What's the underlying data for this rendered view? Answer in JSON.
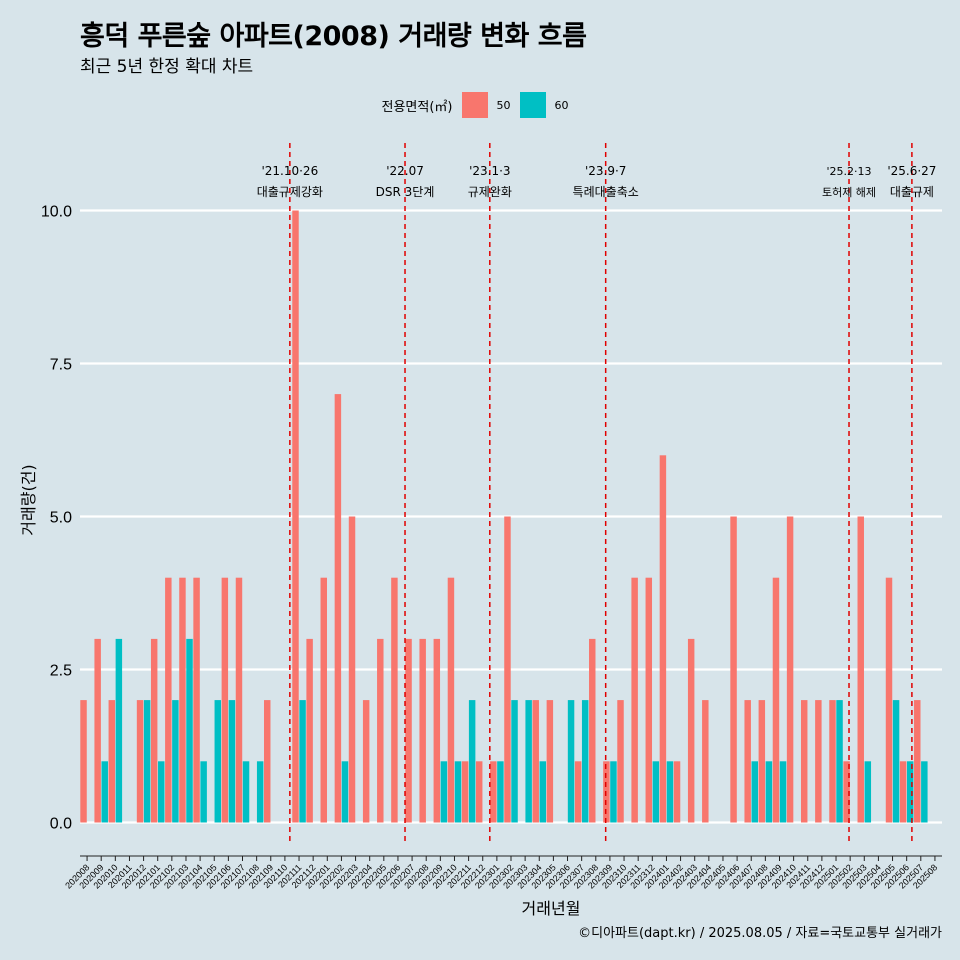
{
  "chart_data": {
    "type": "bar",
    "title": "흥덕 푸른숲 아파트(2008) 거래량 변화 흐름",
    "subtitle": "최근 5년 한정 확대 차트",
    "xlabel": "거래년월",
    "ylabel": "거래량(건)",
    "ylim": [
      -0.45,
      10.6
    ],
    "yticks": [
      "0.0",
      "2.5",
      "5.0",
      "7.5",
      "10.0"
    ],
    "ytick_values": [
      0,
      2.5,
      5,
      7.5,
      10
    ],
    "legend": {
      "title": "전용면적(㎡)",
      "entries": [
        {
          "label": "50",
          "color": "#F8766D"
        },
        {
          "label": "60",
          "color": "#00BFC4"
        }
      ]
    },
    "months": [
      "202008",
      "202009",
      "202010",
      "202011",
      "202012",
      "202101",
      "202102",
      "202103",
      "202104",
      "202105",
      "202106",
      "202107",
      "202108",
      "202109",
      "202110",
      "202111",
      "202112",
      "202201",
      "202202",
      "202203",
      "202204",
      "202205",
      "202206",
      "202207",
      "202208",
      "202209",
      "202210",
      "202211",
      "202212",
      "202301",
      "202302",
      "202303",
      "202304",
      "202305",
      "202306",
      "202307",
      "202308",
      "202309",
      "202310",
      "202311",
      "202312",
      "202401",
      "202402",
      "202403",
      "202404",
      "202405",
      "202406",
      "202407",
      "202408",
      "202409",
      "202410",
      "202411",
      "202412",
      "202501",
      "202502",
      "202503",
      "202504",
      "202505",
      "202506",
      "202507",
      "202508"
    ],
    "series": [
      {
        "name": "50",
        "values": [
          2,
          3,
          2,
          0,
          2,
          3,
          4,
          4,
          4,
          0,
          4,
          4,
          0,
          2,
          0,
          10,
          3,
          4,
          7,
          5,
          2,
          3,
          4,
          3,
          3,
          3,
          4,
          1,
          1,
          1,
          5,
          0,
          2,
          2,
          0,
          1,
          3,
          1,
          2,
          4,
          4,
          6,
          1,
          3,
          2,
          0,
          5,
          2,
          2,
          4,
          5,
          2,
          2,
          2,
          1,
          5,
          0,
          4,
          1,
          2,
          0
        ]
      },
      {
        "name": "60",
        "values": [
          0,
          1,
          3,
          0,
          2,
          1,
          2,
          3,
          1,
          2,
          2,
          1,
          1,
          0,
          0,
          2,
          0,
          0,
          1,
          0,
          0,
          0,
          0,
          0,
          0,
          1,
          1,
          2,
          0,
          1,
          2,
          2,
          1,
          0,
          2,
          2,
          0,
          1,
          0,
          0,
          1,
          1,
          0,
          0,
          0,
          0,
          0,
          1,
          1,
          1,
          0,
          0,
          0,
          2,
          0,
          1,
          0,
          2,
          1,
          1,
          0
        ]
      }
    ],
    "events": [
      {
        "date": "'21.10·26",
        "label": "대출규제강화",
        "month": "202110",
        "frac": 0.85
      },
      {
        "date": "'22.07",
        "label": "DSR 3단계",
        "month": "202207",
        "frac": 0.0
      },
      {
        "date": "'23.1·3",
        "label": "규제완화",
        "month": "202301",
        "frac": 0.0
      },
      {
        "date": "'23.9·7",
        "label": "특례대출축소",
        "month": "202309",
        "frac": 0.2
      },
      {
        "date": "'25.2·13",
        "label": "토허제 해제",
        "month": "202502",
        "frac": 0.42
      },
      {
        "date": "'25.6·27",
        "label": "대출규제",
        "month": "202506",
        "frac": 0.87
      }
    ]
  },
  "caption": "©디아파트(dapt.kr) / 2025.08.05 / 자료=국토교통부 실거래가"
}
